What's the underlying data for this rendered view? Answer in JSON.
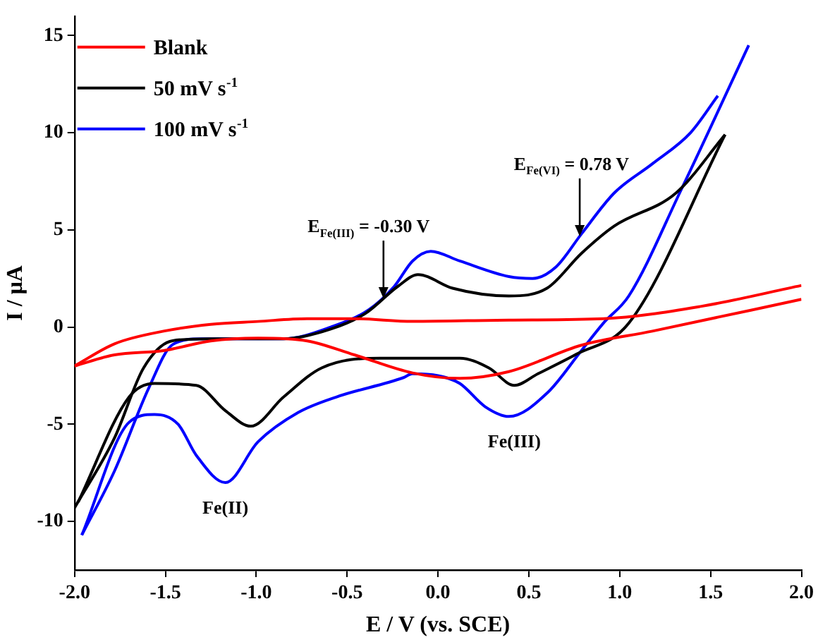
{
  "chart_data": {
    "type": "line",
    "xlabel": "E / V (vs. SCE)",
    "ylabel": "I / μA",
    "xlim": [
      -2,
      2
    ],
    "ylim": [
      -12.5,
      16
    ],
    "xticks": [
      {
        "value": -2,
        "label": "-2.0"
      },
      {
        "value": -1.5,
        "label": "-1.5"
      },
      {
        "value": -1,
        "label": "-1.0"
      },
      {
        "value": -0.5,
        "label": "-0.5"
      },
      {
        "value": 0,
        "label": "0.0"
      },
      {
        "value": 0.5,
        "label": "0.5"
      },
      {
        "value": 1,
        "label": "1.0"
      },
      {
        "value": 1.5,
        "label": "1.5"
      },
      {
        "value": 2,
        "label": "2.0"
      }
    ],
    "yticks": [
      -10,
      -5,
      0,
      5,
      10,
      15
    ],
    "grid": false,
    "legend": "top left",
    "marker": "none",
    "line_style": "solid",
    "series": [
      {
        "name": "Blank",
        "color": "#ff0000",
        "x": [
          -2,
          -1.78,
          -1.51,
          -1.25,
          -0.99,
          -0.72,
          -0.46,
          -0.14,
          0.39,
          0.91,
          1.45,
          2
        ],
        "values": [
          -2,
          -0.86,
          -0.21,
          0.14,
          0.29,
          0.43,
          0.43,
          0.29,
          0.36,
          0.43,
          1.07,
          2.14
        ]
      },
      {
        "color": "#ff0000",
        "x": [
          -2,
          -1.78,
          -1.51,
          -1.25,
          -0.99,
          -0.72,
          -0.46,
          -0.14,
          0.12,
          0.39,
          0.79,
          1.18,
          2
        ],
        "values": [
          -2,
          -1.43,
          -1.21,
          -0.71,
          -0.57,
          -0.71,
          -1.43,
          -2.36,
          -2.64,
          -2.29,
          -0.93,
          -0.21,
          1.43
        ]
      },
      {
        "name": "50 mV s$^{-1}$",
        "color": "#000000",
        "x": [
          -2,
          -1.78,
          -1.62,
          -1.46,
          -1.25,
          -0.85,
          -0.59,
          -0.4,
          -0.22,
          -0.11,
          0.08,
          0.39,
          0.6,
          0.79,
          0.97,
          1.31,
          1.58
        ],
        "values": [
          -9.3,
          -5.7,
          -2.1,
          -0.7,
          -0.6,
          -0.6,
          -0.1,
          0.7,
          2.1,
          2.7,
          2,
          1.6,
          2,
          3.8,
          5.2,
          6.9,
          9.9
        ]
      },
      {
        "color": "#000000",
        "x": [
          -1.98,
          -1.7,
          -1.56,
          -1.33,
          -1.17,
          -1.03,
          -0.85,
          -0.64,
          -0.32,
          -0.14,
          0.12,
          0.28,
          0.42,
          0.55,
          0.76,
          1.05,
          1.58
        ],
        "values": [
          -9,
          -3.6,
          -2.9,
          -3,
          -4.3,
          -5.1,
          -3.6,
          -2.1,
          -1.6,
          -1.6,
          -1.6,
          -2.1,
          -3,
          -2.4,
          -1.4,
          0.2,
          9.9
        ]
      },
      {
        "name": "100 mV s$^{-1}$",
        "color": "#0000ff",
        "x": [
          -1.96,
          -1.78,
          -1.59,
          -1.46,
          -1.3,
          -0.85,
          -0.59,
          -0.38,
          -0.24,
          -0.14,
          -0.04,
          0.12,
          0.39,
          0.52,
          0.65,
          0.79,
          0.97,
          1.18,
          1.39,
          1.54
        ],
        "values": [
          -10.7,
          -7.4,
          -3.1,
          -0.9,
          -0.6,
          -0.6,
          0,
          0.9,
          2.1,
          3.4,
          3.9,
          3.4,
          2.6,
          2.5,
          3.1,
          4.8,
          6.9,
          8.4,
          10,
          11.9
        ]
      },
      {
        "color": "#0000ff",
        "x": [
          -1.96,
          -1.7,
          -1.56,
          -1.43,
          -1.33,
          -1.17,
          -0.99,
          -0.77,
          -0.56,
          -0.19,
          -0.14,
          0,
          0.12,
          0.26,
          0.39,
          0.6,
          0.79,
          0.91,
          1.05,
          1.34,
          1.71
        ],
        "values": [
          -10.7,
          -4.9,
          -4.5,
          -5,
          -6.6,
          -8,
          -5.9,
          -4.4,
          -3.6,
          -2.6,
          -2.4,
          -2.5,
          -2.9,
          -4.1,
          -4.6,
          -3.4,
          -1.2,
          0.2,
          1.6,
          7.1,
          14.5
        ]
      }
    ],
    "annotations": [
      {
        "text": "E$_{Fe(III)}$ = -0.30 V",
        "x": -0.3,
        "y": 1.4
      },
      {
        "text": "E$_{Fe(VI)}$ = 0.78 V",
        "x": 0.78,
        "y": 4.6
      },
      {
        "text": "Fe(II)",
        "x": -1.17,
        "y": -8
      },
      {
        "text": "Fe(III)",
        "x": 0.42,
        "y": -4.6
      }
    ]
  }
}
